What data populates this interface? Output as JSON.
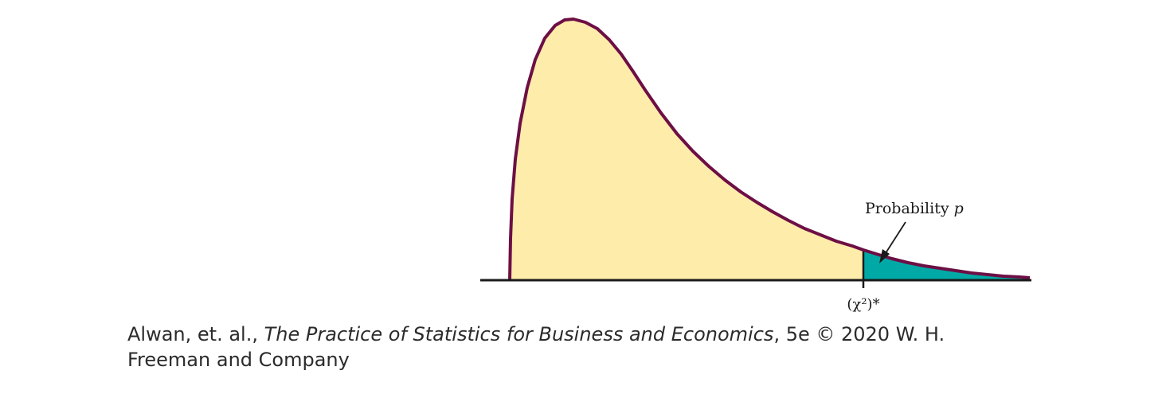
{
  "figure": {
    "annotation_text": "Probability ",
    "annotation_var": "p",
    "critical_value_label": "(χ²)*",
    "colors": {
      "curve_stroke": "#6d0f45",
      "body_fill": "#feecab",
      "tail_fill": "#00a9a5",
      "axis": "#1a1a1a"
    }
  },
  "caption": {
    "authors": "Alwan, et. al., ",
    "book_title": "The Practice of Statistics for Business and Economics",
    "edition_publisher": ", 5e © 2020 W. H. Freeman and Company"
  }
}
